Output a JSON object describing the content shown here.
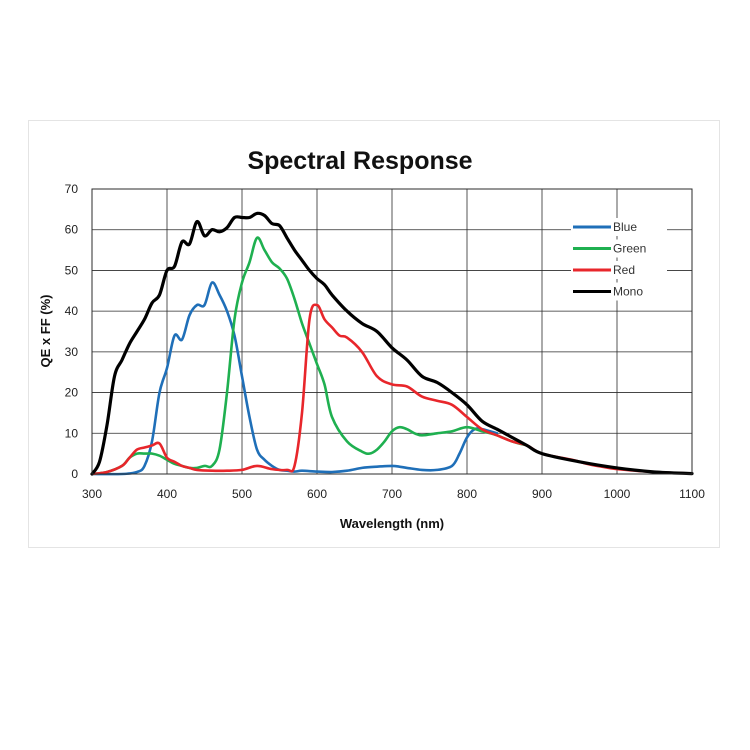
{
  "chart_data": {
    "type": "line",
    "title": "Spectral Response",
    "xlabel": "Wavelength (nm)",
    "ylabel": "QE x FF (%)",
    "xlim": [
      300,
      1100
    ],
    "ylim": [
      0,
      70
    ],
    "xticks": [
      300,
      400,
      500,
      600,
      700,
      800,
      900,
      1000,
      1100
    ],
    "yticks": [
      0,
      10,
      20,
      30,
      40,
      50,
      60,
      70
    ],
    "grid": true,
    "legend_position": "top-right",
    "series": [
      {
        "name": "Blue",
        "color": "#1f6fb8",
        "x": [
          300,
          340,
          360,
          370,
          380,
          390,
          400,
          410,
          420,
          430,
          440,
          450,
          460,
          470,
          480,
          490,
          500,
          510,
          520,
          530,
          540,
          550,
          560,
          570,
          580,
          600,
          620,
          640,
          660,
          680,
          700,
          710,
          720,
          740,
          760,
          780,
          790,
          800,
          810,
          820,
          840
        ],
        "y": [
          0,
          0,
          0.5,
          2,
          8,
          20,
          26,
          34,
          33,
          39,
          41.5,
          41.5,
          47,
          44,
          40,
          34,
          24,
          14,
          6,
          3.5,
          2,
          1,
          0.8,
          0.6,
          0.8,
          0.6,
          0.5,
          0.8,
          1.5,
          1.8,
          2,
          1.8,
          1.5,
          1,
          1,
          2,
          5,
          9,
          11,
          11,
          10
        ]
      },
      {
        "name": "Green",
        "color": "#1fb050",
        "x": [
          300,
          320,
          340,
          350,
          360,
          370,
          380,
          390,
          400,
          410,
          420,
          430,
          440,
          450,
          460,
          470,
          480,
          490,
          500,
          510,
          520,
          530,
          540,
          550,
          560,
          570,
          580,
          590,
          600,
          610,
          620,
          640,
          660,
          670,
          680,
          690,
          700,
          710,
          720,
          730,
          740,
          760,
          780,
          800,
          820,
          840,
          860,
          880
        ],
        "y": [
          0,
          0.5,
          2,
          4,
          5,
          5,
          5,
          4.5,
          3.5,
          2.5,
          2,
          1.5,
          1.5,
          2,
          2,
          6,
          20,
          38,
          47,
          52,
          58,
          55,
          52,
          50.5,
          48,
          43,
          37,
          32,
          27,
          22,
          14,
          8,
          5.5,
          5,
          6,
          8,
          10.5,
          11.5,
          11,
          10,
          9.5,
          10,
          10.5,
          11.5,
          10.5,
          9.5,
          8,
          7
        ]
      },
      {
        "name": "Red",
        "color": "#e8262b",
        "x": [
          300,
          320,
          340,
          350,
          360,
          370,
          380,
          390,
          400,
          410,
          420,
          430,
          440,
          460,
          480,
          500,
          520,
          540,
          560,
          570,
          580,
          590,
          600,
          610,
          620,
          630,
          640,
          660,
          680,
          700,
          720,
          740,
          760,
          780,
          800,
          820,
          840,
          860,
          880,
          900,
          940,
          960,
          980,
          1000,
          1050,
          1100
        ],
        "y": [
          0,
          0.5,
          2,
          4,
          6,
          6.5,
          7,
          7.5,
          4,
          3,
          2,
          1.5,
          1,
          0.8,
          0.8,
          1,
          2,
          1.2,
          1,
          2,
          15,
          38,
          41.5,
          38,
          36,
          34,
          33.5,
          30,
          24,
          22,
          21.5,
          19,
          18,
          17,
          14,
          11,
          9.5,
          8,
          7,
          5,
          3.5,
          2.5,
          1.8,
          1.2,
          0.5,
          0.1
        ]
      },
      {
        "name": "Mono",
        "color": "#000000",
        "x": [
          300,
          310,
          320,
          330,
          340,
          350,
          360,
          370,
          380,
          390,
          400,
          410,
          420,
          430,
          440,
          450,
          460,
          470,
          480,
          490,
          500,
          510,
          520,
          530,
          540,
          550,
          560,
          570,
          580,
          590,
          600,
          610,
          620,
          640,
          660,
          680,
          700,
          720,
          740,
          760,
          780,
          800,
          820,
          840,
          860,
          880,
          900,
          950,
          1000,
          1050,
          1100
        ],
        "y": [
          0,
          3,
          12,
          24,
          28,
          32,
          35,
          38,
          42,
          44,
          50,
          51,
          57,
          56.5,
          62,
          58.5,
          60,
          59.5,
          60.5,
          63,
          63,
          63,
          64,
          63.5,
          61.5,
          61,
          58,
          55,
          52.5,
          50,
          48,
          46.5,
          44,
          40,
          37,
          35,
          31,
          28,
          24,
          22.5,
          20,
          17,
          13,
          11,
          9,
          7,
          5,
          3,
          1.5,
          0.5,
          0.1
        ]
      }
    ]
  }
}
